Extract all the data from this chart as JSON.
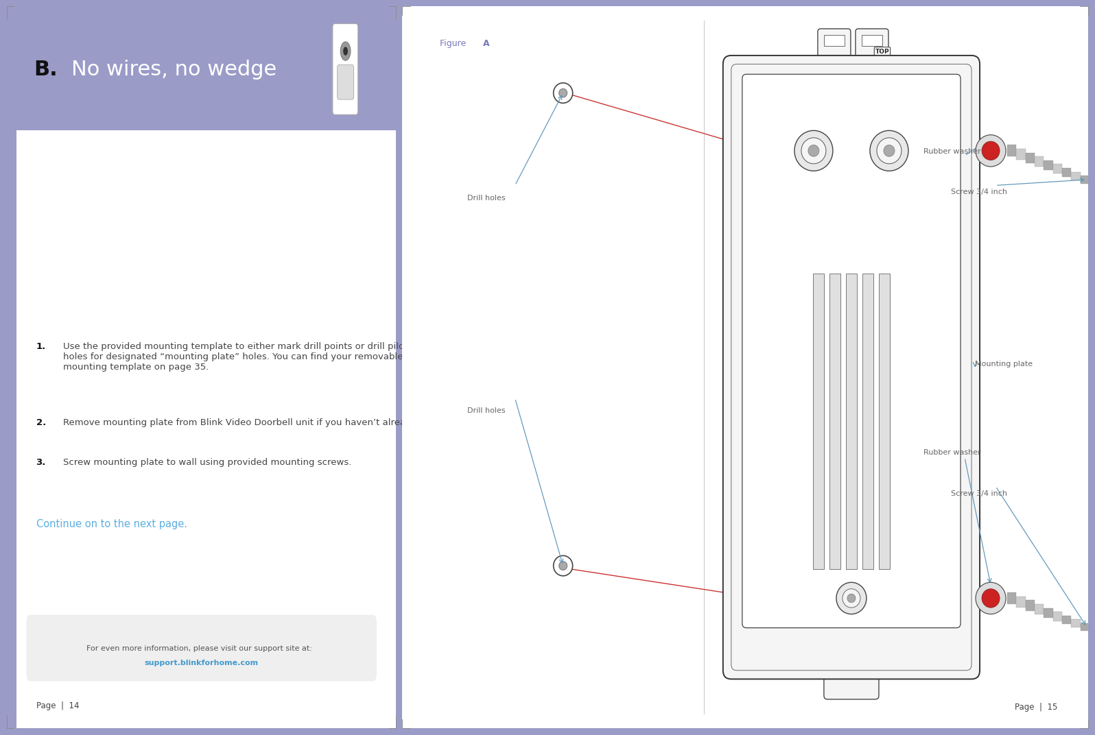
{
  "bg_color": "#9b9bc8",
  "left_panel_bg": "#9b9bc8",
  "white_bg": "#ffffff",
  "title_b": "B.",
  "title_b_color": "#111111",
  "title_text": "No wires, no wedge",
  "title_text_color": "#ffffff",
  "figure_label_normal": "Figure ",
  "figure_label_bold": "A",
  "figure_label_color": "#7878bb",
  "step1_num": "1.",
  "step1": "Use the provided mounting template to either mark drill points or drill pilot\nholes for designated “mounting plate” holes. You can find your removable\nmounting template on page 35.",
  "step2_num": "2.",
  "step2": "Remove mounting plate from Blink Video Doorbell unit if you haven’t already.",
  "step3_num": "3.",
  "step3": "Screw mounting plate to wall using provided mounting screws.",
  "continue_text": "Continue on to the next page.",
  "continue_color": "#5baee0",
  "footer_text": "For even more information, please visit our support site at: ",
  "footer_link": "support.blinkforhome.com",
  "footer_link_color": "#4499cc",
  "footer_bg": "#eeeeee",
  "page14": "Page  |  14",
  "page15": "Page  |  15",
  "page_color": "#444444",
  "text_color": "#444444",
  "step_num_color": "#111111",
  "label_color": "#666666",
  "red_line_color": "#cc3333",
  "blue_arrow_color": "#6699bb",
  "plate_edge_color": "#333333",
  "plate_fill_color": "#f5f5f5",
  "divider_color": "#cccccc",
  "screw_body_color": "#bbbbbb",
  "screw_head_color": "#cccccc",
  "washer_fill": "#dddddd",
  "washer_red_center": "#cc2222"
}
